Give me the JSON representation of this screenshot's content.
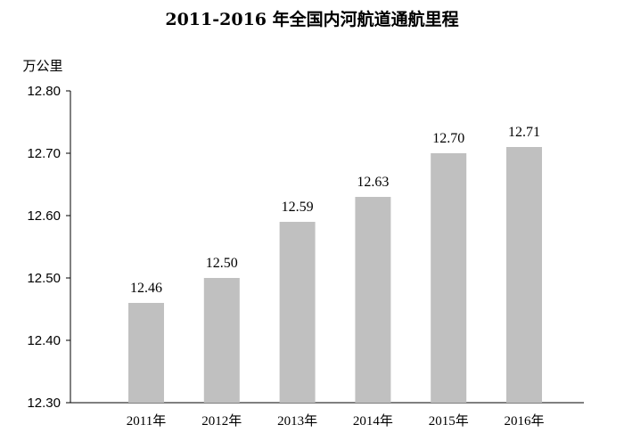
{
  "chart_data": {
    "type": "bar",
    "title": "2011-2016 年全国内河航道通航里程",
    "unit_label": "万公里",
    "categories": [
      "2011年",
      "2012年",
      "2013年",
      "2014年",
      "2015年",
      "2016年"
    ],
    "values": [
      12.46,
      12.5,
      12.59,
      12.63,
      12.7,
      12.71
    ],
    "data_labels": [
      "12.46",
      "12.50",
      "12.59",
      "12.63",
      "12.70",
      "12.71"
    ],
    "ylim": [
      12.3,
      12.8
    ],
    "yticks": [
      "12.30",
      "12.40",
      "12.50",
      "12.60",
      "12.70",
      "12.80"
    ],
    "grid": false,
    "bar_color": "#c0c0c0"
  }
}
